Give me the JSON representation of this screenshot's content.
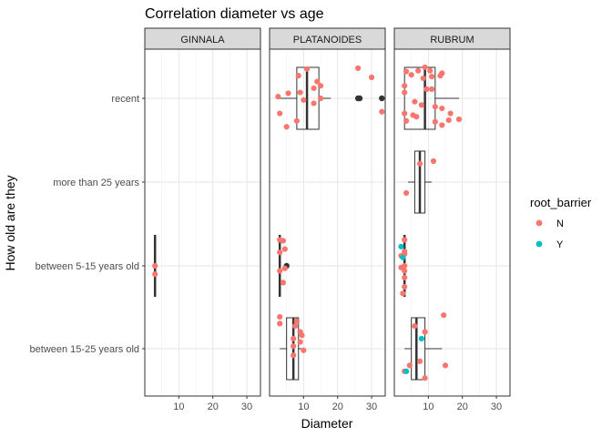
{
  "chart_data": {
    "type": "boxplot-jitter",
    "title": "Correlation diameter vs age",
    "xlabel": "Diameter",
    "ylabel": "How old are they",
    "xlim": [
      0,
      34
    ],
    "x_ticks": [
      10,
      20,
      30
    ],
    "categories": [
      "recent",
      "more than 25 years",
      "between 5-15 years old",
      "between 15-25 years old"
    ],
    "facets": [
      "GINNALA",
      "PLATANOIDES",
      "RUBRUM"
    ],
    "grid": true,
    "legend": {
      "title": "root_barrier",
      "position": "right",
      "entries": [
        {
          "label": "N",
          "color": "#F8766D"
        },
        {
          "label": "Y",
          "color": "#00BFC4"
        }
      ]
    },
    "panels": [
      {
        "facet": "GINNALA",
        "boxes": [
          {
            "category": "between 5-15 years old",
            "min": 3,
            "q1": 3,
            "median": 3,
            "q3": 3,
            "max": 3,
            "outliers": []
          }
        ],
        "points": [
          {
            "category": "between 5-15 years old",
            "x": 3,
            "offset": 0.0,
            "group": "N"
          },
          {
            "category": "between 5-15 years old",
            "x": 3,
            "offset": 0.1,
            "group": "N"
          }
        ]
      },
      {
        "facet": "PLATANOIDES",
        "boxes": [
          {
            "category": "recent",
            "min": 3,
            "q1": 8,
            "median": 11,
            "q3": 14.5,
            "max": 18,
            "outliers": [
              26,
              26.5,
              33
            ]
          },
          {
            "category": "between 5-15 years old",
            "min": 3,
            "q1": 3,
            "median": 3,
            "q3": 3,
            "max": 3,
            "outliers": [
              5
            ]
          },
          {
            "category": "between 15-25 years old",
            "min": 3,
            "q1": 5,
            "median": 7,
            "q3": 8.5,
            "max": 10,
            "outliers": []
          }
        ],
        "points": [
          {
            "category": "recent",
            "x": 11,
            "offset": -0.35,
            "group": "N"
          },
          {
            "category": "recent",
            "x": 26,
            "offset": -0.36,
            "group": "N"
          },
          {
            "category": "recent",
            "x": 30,
            "offset": -0.25,
            "group": "N"
          },
          {
            "category": "recent",
            "x": 8.5,
            "offset": -0.27,
            "group": "N"
          },
          {
            "category": "recent",
            "x": 14,
            "offset": -0.2,
            "group": "N"
          },
          {
            "category": "recent",
            "x": 15,
            "offset": -0.15,
            "group": "N"
          },
          {
            "category": "recent",
            "x": 13,
            "offset": -0.12,
            "group": "N"
          },
          {
            "category": "recent",
            "x": 9,
            "offset": -0.07,
            "group": "N"
          },
          {
            "category": "recent",
            "x": 5.5,
            "offset": -0.06,
            "group": "N"
          },
          {
            "category": "recent",
            "x": 2.5,
            "offset": -0.02,
            "group": "N"
          },
          {
            "category": "recent",
            "x": 15,
            "offset": 0.0,
            "group": "N"
          },
          {
            "category": "recent",
            "x": 10,
            "offset": 0.02,
            "group": "N"
          },
          {
            "category": "recent",
            "x": 13,
            "offset": 0.06,
            "group": "N"
          },
          {
            "category": "recent",
            "x": 3,
            "offset": 0.18,
            "group": "N"
          },
          {
            "category": "recent",
            "x": 33,
            "offset": 0.16,
            "group": "N"
          },
          {
            "category": "recent",
            "x": 8,
            "offset": 0.27,
            "group": "N"
          },
          {
            "category": "recent",
            "x": 5,
            "offset": 0.34,
            "group": "N"
          },
          {
            "category": "between 5-15 years old",
            "x": 3,
            "offset": -0.31,
            "group": "N"
          },
          {
            "category": "between 5-15 years old",
            "x": 4,
            "offset": -0.3,
            "group": "N"
          },
          {
            "category": "between 5-15 years old",
            "x": 4.5,
            "offset": -0.2,
            "group": "N"
          },
          {
            "category": "between 5-15 years old",
            "x": 3,
            "offset": -0.16,
            "group": "N"
          },
          {
            "category": "between 5-15 years old",
            "x": 4.5,
            "offset": 0.03,
            "group": "N"
          },
          {
            "category": "between 5-15 years old",
            "x": 3,
            "offset": 0.06,
            "group": "N"
          },
          {
            "category": "between 5-15 years old",
            "x": 4,
            "offset": 0.2,
            "group": "N"
          },
          {
            "category": "between 15-25 years old",
            "x": 3,
            "offset": -0.38,
            "group": "N"
          },
          {
            "category": "between 15-25 years old",
            "x": 3,
            "offset": -0.3,
            "group": "N"
          },
          {
            "category": "between 15-25 years old",
            "x": 8,
            "offset": -0.33,
            "group": "N"
          },
          {
            "category": "between 15-25 years old",
            "x": 7.5,
            "offset": -0.27,
            "group": "N"
          },
          {
            "category": "between 15-25 years old",
            "x": 9,
            "offset": -0.2,
            "group": "N"
          },
          {
            "category": "between 15-25 years old",
            "x": 9.5,
            "offset": -0.16,
            "group": "N"
          },
          {
            "category": "between 15-25 years old",
            "x": 7,
            "offset": -0.12,
            "group": "N"
          },
          {
            "category": "between 15-25 years old",
            "x": 9,
            "offset": -0.08,
            "group": "N"
          },
          {
            "category": "between 15-25 years old",
            "x": 7,
            "offset": -0.03,
            "group": "N"
          },
          {
            "category": "between 15-25 years old",
            "x": 10,
            "offset": 0.02,
            "group": "N"
          },
          {
            "category": "between 15-25 years old",
            "x": 7,
            "offset": 0.08,
            "group": "N"
          }
        ]
      },
      {
        "facet": "RUBRUM",
        "boxes": [
          {
            "category": "recent",
            "min": 3,
            "q1": 3,
            "median": 9,
            "q3": 12,
            "max": 19,
            "outliers": []
          },
          {
            "category": "more than 25 years",
            "min": 4,
            "q1": 6,
            "median": 7.5,
            "q3": 9,
            "max": 11,
            "outliers": []
          },
          {
            "category": "between 5-15 years old",
            "min": 3,
            "q1": 3,
            "median": 3,
            "q3": 3,
            "max": 3,
            "outliers": []
          },
          {
            "category": "between 15-25 years old",
            "min": 3,
            "q1": 5,
            "median": 6.5,
            "q3": 9,
            "max": 14,
            "outliers": []
          }
        ],
        "points": [
          {
            "category": "recent",
            "x": 9,
            "offset": -0.37,
            "group": "N"
          },
          {
            "category": "recent",
            "x": 10.5,
            "offset": -0.33,
            "group": "N"
          },
          {
            "category": "recent",
            "x": 7,
            "offset": -0.33,
            "group": "N"
          },
          {
            "category": "recent",
            "x": 14,
            "offset": -0.3,
            "group": "N"
          },
          {
            "category": "recent",
            "x": 3.5,
            "offset": -0.32,
            "group": "N"
          },
          {
            "category": "recent",
            "x": 13.5,
            "offset": -0.27,
            "group": "N"
          },
          {
            "category": "recent",
            "x": 5,
            "offset": -0.28,
            "group": "N"
          },
          {
            "category": "recent",
            "x": 11,
            "offset": -0.26,
            "group": "N"
          },
          {
            "category": "recent",
            "x": 8.5,
            "offset": -0.24,
            "group": "N"
          },
          {
            "category": "recent",
            "x": 3,
            "offset": -0.15,
            "group": "N"
          },
          {
            "category": "recent",
            "x": 9.5,
            "offset": -0.11,
            "group": "N"
          },
          {
            "category": "recent",
            "x": 11,
            "offset": -0.11,
            "group": "N"
          },
          {
            "category": "recent",
            "x": 3,
            "offset": -0.07,
            "group": "N"
          },
          {
            "category": "recent",
            "x": 6,
            "offset": 0.04,
            "group": "N"
          },
          {
            "category": "recent",
            "x": 8,
            "offset": 0.08,
            "group": "N"
          },
          {
            "category": "recent",
            "x": 12,
            "offset": 0.1,
            "group": "N"
          },
          {
            "category": "recent",
            "x": 14,
            "offset": 0.12,
            "group": "N"
          },
          {
            "category": "recent",
            "x": 3,
            "offset": 0.18,
            "group": "N"
          },
          {
            "category": "recent",
            "x": 16.5,
            "offset": 0.18,
            "group": "N"
          },
          {
            "category": "recent",
            "x": 5.5,
            "offset": 0.2,
            "group": "N"
          },
          {
            "category": "recent",
            "x": 6.5,
            "offset": 0.22,
            "group": "N"
          },
          {
            "category": "recent",
            "x": 19,
            "offset": 0.25,
            "group": "N"
          },
          {
            "category": "recent",
            "x": 16,
            "offset": 0.26,
            "group": "N"
          },
          {
            "category": "recent",
            "x": 3.5,
            "offset": 0.27,
            "group": "N"
          },
          {
            "category": "recent",
            "x": 12,
            "offset": 0.28,
            "group": "N"
          },
          {
            "category": "recent",
            "x": 14,
            "offset": 0.32,
            "group": "N"
          },
          {
            "category": "more than 25 years",
            "x": 7.5,
            "offset": -0.22,
            "group": "N"
          },
          {
            "category": "more than 25 years",
            "x": 11.5,
            "offset": -0.25,
            "group": "N"
          },
          {
            "category": "more than 25 years",
            "x": 3.5,
            "offset": 0.13,
            "group": "N"
          },
          {
            "category": "between 5-15 years old",
            "x": 3,
            "offset": -0.31,
            "group": "N"
          },
          {
            "category": "between 5-15 years old",
            "x": 3,
            "offset": -0.17,
            "group": "N"
          },
          {
            "category": "between 5-15 years old",
            "x": 3,
            "offset": -0.14,
            "group": "N"
          },
          {
            "category": "between 5-15 years old",
            "x": 2,
            "offset": -0.12,
            "group": "N"
          },
          {
            "category": "between 5-15 years old",
            "x": 3,
            "offset": 0.0,
            "group": "N"
          },
          {
            "category": "between 5-15 years old",
            "x": 2,
            "offset": 0.02,
            "group": "N"
          },
          {
            "category": "between 5-15 years old",
            "x": 3,
            "offset": 0.06,
            "group": "N"
          },
          {
            "category": "between 5-15 years old",
            "x": 3,
            "offset": 0.14,
            "group": "N"
          },
          {
            "category": "between 5-15 years old",
            "x": 3,
            "offset": 0.25,
            "group": "N"
          },
          {
            "category": "between 5-15 years old",
            "x": 2.5,
            "offset": 0.33,
            "group": "N"
          },
          {
            "category": "between 5-15 years old",
            "x": 2,
            "offset": -0.23,
            "group": "Y"
          },
          {
            "category": "between 5-15 years old",
            "x": 2.5,
            "offset": -0.1,
            "group": "Y"
          },
          {
            "category": "between 15-25 years old",
            "x": 6,
            "offset": -0.27,
            "group": "N"
          },
          {
            "category": "between 15-25 years old",
            "x": 9,
            "offset": -0.2,
            "group": "N"
          },
          {
            "category": "between 15-25 years old",
            "x": 14.5,
            "offset": -0.4,
            "group": "N"
          },
          {
            "category": "between 15-25 years old",
            "x": 7.5,
            "offset": 0.15,
            "group": "N"
          },
          {
            "category": "between 15-25 years old",
            "x": 4.5,
            "offset": 0.2,
            "group": "N"
          },
          {
            "category": "between 15-25 years old",
            "x": 15,
            "offset": 0.2,
            "group": "N"
          },
          {
            "category": "between 15-25 years old",
            "x": 3,
            "offset": 0.27,
            "group": "N"
          },
          {
            "category": "between 15-25 years old",
            "x": 9,
            "offset": 0.35,
            "group": "N"
          },
          {
            "category": "between 15-25 years old",
            "x": 8,
            "offset": -0.12,
            "group": "Y"
          },
          {
            "category": "between 15-25 years old",
            "x": 3.5,
            "offset": 0.27,
            "group": "Y"
          }
        ]
      }
    ]
  }
}
